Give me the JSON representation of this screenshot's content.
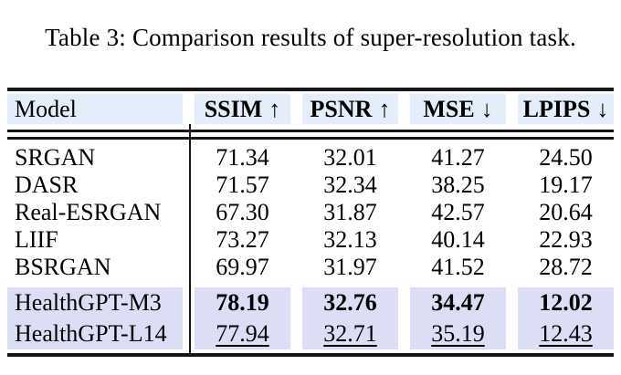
{
  "caption": "Table 3: Comparison results of super-resolution task.",
  "table": {
    "header": {
      "model": "Model",
      "cols": [
        {
          "label": "SSIM",
          "arrow": "↑"
        },
        {
          "label": "PSNR",
          "arrow": "↑"
        },
        {
          "label": "MSE",
          "arrow": "↓"
        },
        {
          "label": "LPIPS",
          "arrow": "↓"
        }
      ]
    },
    "rows": [
      {
        "model": "SRGAN",
        "values": [
          "71.34",
          "32.01",
          "41.27",
          "24.50"
        ],
        "emphasis": "none"
      },
      {
        "model": "DASR",
        "values": [
          "71.57",
          "32.34",
          "38.25",
          "19.17"
        ],
        "emphasis": "none"
      },
      {
        "model": "Real-ESRGAN",
        "values": [
          "67.30",
          "31.87",
          "42.57",
          "20.64"
        ],
        "emphasis": "none"
      },
      {
        "model": "LIIF",
        "values": [
          "73.27",
          "32.13",
          "40.14",
          "22.93"
        ],
        "emphasis": "none"
      },
      {
        "model": "BSRGAN",
        "values": [
          "69.97",
          "31.97",
          "41.52",
          "28.72"
        ],
        "emphasis": "none"
      },
      {
        "model": "HealthGPT-M3",
        "values": [
          "78.19",
          "32.76",
          "34.47",
          "12.02"
        ],
        "emphasis": "bold",
        "highlighted": true
      },
      {
        "model": "HealthGPT-L14",
        "values": [
          "77.94",
          "32.71",
          "35.19",
          "12.43"
        ],
        "emphasis": "underline",
        "highlighted": true
      }
    ]
  },
  "colors": {
    "header_bg": "#e4eefa",
    "highlight_bg": "#dcdef5",
    "rule": "#161616",
    "text": "#000000"
  }
}
